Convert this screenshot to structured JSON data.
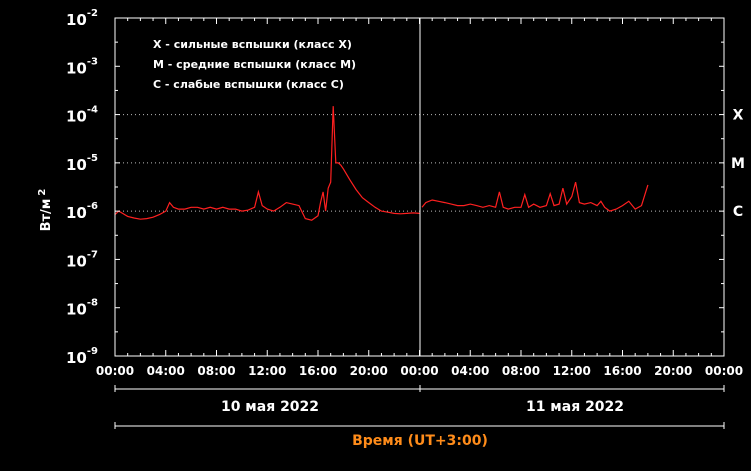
{
  "chart_data": {
    "type": "line",
    "xlabel": "Время (UT+3:00)",
    "ylabel": "Вт/м",
    "ylabel_exp": "2",
    "y_scale": "log",
    "ylim_exp": [
      -9,
      -2
    ],
    "y_ticks": [
      {
        "base": "10",
        "exp": "-2"
      },
      {
        "base": "10",
        "exp": "-3"
      },
      {
        "base": "10",
        "exp": "-4"
      },
      {
        "base": "10",
        "exp": "-5"
      },
      {
        "base": "10",
        "exp": "-6"
      },
      {
        "base": "10",
        "exp": "-7"
      },
      {
        "base": "10",
        "exp": "-8"
      },
      {
        "base": "10",
        "exp": "-9"
      }
    ],
    "xlim_hours": [
      0,
      48
    ],
    "x_tick_labels": [
      "00:00",
      "04:00",
      "08:00",
      "12:00",
      "16:00",
      "20:00",
      "00:00",
      "04:00",
      "08:00",
      "12:00",
      "16:00",
      "20:00",
      "00:00"
    ],
    "dates": [
      "10 мая 2022",
      "11 мая 2022"
    ],
    "legend": [
      "X - сильные вспышки (класс X)",
      "M - средние вспышки (класс M)",
      "C - слабые вспышки (класс C)"
    ],
    "flare_classes": [
      {
        "label": "X",
        "exp": -4
      },
      {
        "label": "M",
        "exp": -5
      },
      {
        "label": "C",
        "exp": -6
      }
    ],
    "grid": false,
    "colors": {
      "series": "#ff2020",
      "axes": "#ffffff",
      "xlabel": "#ff8c1a"
    },
    "series": [
      {
        "x": [
          0,
          0.3,
          0.6,
          1,
          1.5,
          2,
          2.5,
          3,
          3.5,
          4,
          4.3,
          4.6,
          5,
          5.5,
          6,
          6.5,
          7,
          7.5,
          8,
          8.5,
          9,
          9.5,
          10,
          10.5,
          11,
          11.3,
          11.6,
          12,
          12.5,
          13,
          13.5,
          14,
          14.5,
          15,
          15.5,
          16,
          16.2,
          16.4,
          16.6,
          16.8,
          17,
          17.2,
          17.4,
          17.6,
          17.8,
          18,
          18.5,
          19,
          19.5,
          20,
          20.5,
          21,
          21.5,
          22,
          22.5,
          23,
          23.5,
          24
        ],
        "y": [
          8.5e-07,
          1e-06,
          9e-07,
          7.8e-07,
          7.2e-07,
          6.8e-07,
          7e-07,
          7.5e-07,
          8.5e-07,
          1e-06,
          1.5e-06,
          1.2e-06,
          1.1e-06,
          1.1e-06,
          1.2e-06,
          1.2e-06,
          1.1e-06,
          1.2e-06,
          1.1e-06,
          1.2e-06,
          1.1e-06,
          1.1e-06,
          1e-06,
          1.05e-06,
          1.2e-06,
          2.5e-06,
          1.3e-06,
          1.1e-06,
          1e-06,
          1.2e-06,
          1.5e-06,
          1.4e-06,
          1.3e-06,
          7e-07,
          6.5e-07,
          8e-07,
          1.5e-06,
          2.5e-06,
          1e-06,
          3e-06,
          4e-06,
          0.00015,
          1e-05,
          1e-05,
          9e-06,
          7.5e-06,
          4.5e-06,
          2.8e-06,
          1.9e-06,
          1.5e-06,
          1.2e-06,
          1e-06,
          9.5e-07,
          9e-07,
          8.8e-07,
          9e-07,
          9.2e-07,
          9e-07
        ]
      },
      {
        "x": [
          24.2,
          24.5,
          25,
          25.5,
          26,
          26.5,
          27,
          27.5,
          28,
          28.5,
          29,
          29.5,
          30,
          30.3,
          30.6,
          31,
          31.5,
          32,
          32.3,
          32.6,
          33,
          33.5,
          34,
          34.3,
          34.6,
          35,
          35.3,
          35.6,
          36,
          36.3,
          36.6,
          37,
          37.5,
          38,
          38.3,
          38.6,
          39,
          39.5,
          40,
          40.5,
          41,
          41.5,
          42
        ],
        "y": [
          1.2e-06,
          1.5e-06,
          1.7e-06,
          1.6e-06,
          1.5e-06,
          1.4e-06,
          1.3e-06,
          1.3e-06,
          1.4e-06,
          1.3e-06,
          1.2e-06,
          1.3e-06,
          1.2e-06,
          2.5e-06,
          1.2e-06,
          1.1e-06,
          1.2e-06,
          1.2e-06,
          2.2e-06,
          1.2e-06,
          1.4e-06,
          1.2e-06,
          1.3e-06,
          2.3e-06,
          1.3e-06,
          1.4e-06,
          3e-06,
          1.4e-06,
          2e-06,
          4e-06,
          1.5e-06,
          1.4e-06,
          1.5e-06,
          1.3e-06,
          1.6e-06,
          1.2e-06,
          1e-06,
          1.1e-06,
          1.3e-06,
          1.6e-06,
          1.1e-06,
          1.3e-06,
          3.5e-06
        ]
      }
    ]
  }
}
